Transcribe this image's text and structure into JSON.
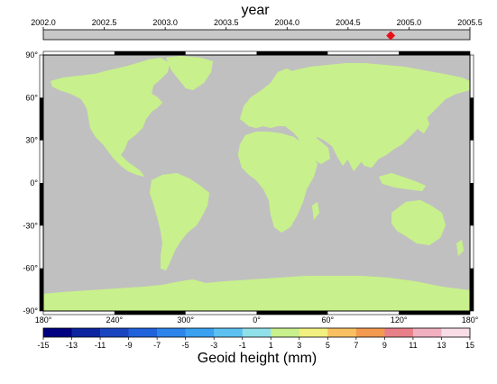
{
  "timeline": {
    "title": "year",
    "ticks": [
      "2002.0",
      "2002.5",
      "2003.0",
      "2003.5",
      "2004.0",
      "2004.5",
      "2005.0",
      "2005.5"
    ],
    "range": [
      2002.0,
      2005.5
    ],
    "current_year": 2004.85,
    "marker_color": "#e8101a"
  },
  "map": {
    "projection": "equirectangular",
    "lon_range": [
      -180,
      180
    ],
    "lat_range": [
      -90,
      90
    ],
    "lat_labels": [
      "90°",
      "60°",
      "30°",
      "0°",
      "-30°",
      "-60°",
      "-90°"
    ],
    "lon_labels": [
      "180°",
      "240°",
      "300°",
      "0°",
      "60°",
      "120°",
      "180°"
    ],
    "ocean_color": "#c0c0c0",
    "land_base_color": "#c8f08c"
  },
  "colorbar": {
    "title": "Geoid height (mm)",
    "labels": [
      "-15",
      "-13",
      "-11",
      "-9",
      "-7",
      "-5",
      "-3",
      "-1",
      "1",
      "3",
      "5",
      "7",
      "9",
      "11",
      "13",
      "15"
    ],
    "colors": [
      "#000080",
      "#0d24a0",
      "#1a45c0",
      "#2062dc",
      "#2c84ea",
      "#3aa0f0",
      "#5cc0f0",
      "#90e0ea",
      "#c8f08c",
      "#f2f080",
      "#f8c060",
      "#f29a50",
      "#e8808a",
      "#f0b0c0",
      "#f8dde6"
    ]
  }
}
